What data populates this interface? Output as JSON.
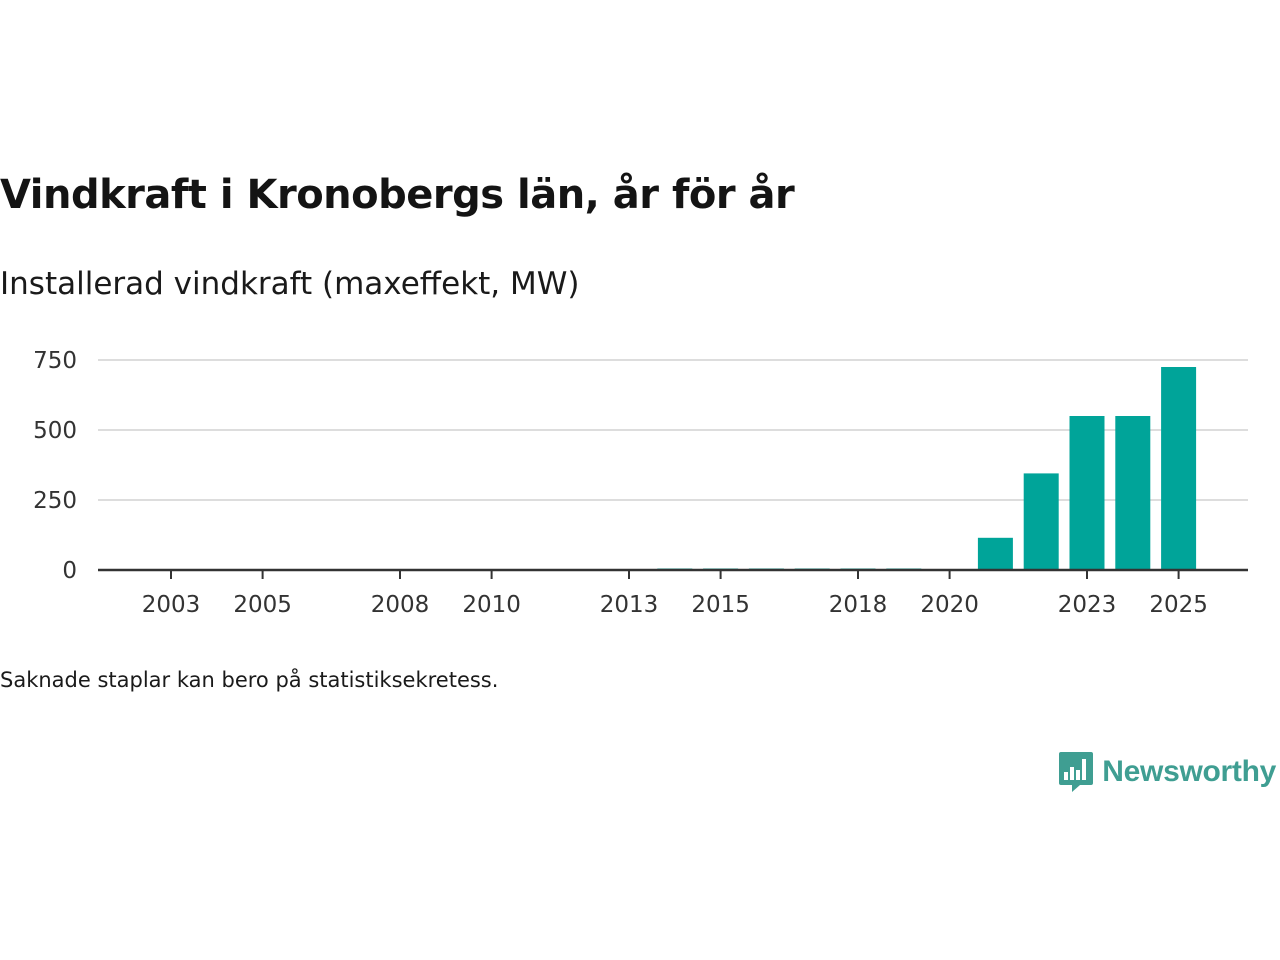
{
  "header": {
    "title": "Vindkraft i Kronobergs län, år för år",
    "subtitle": "Installerad vindkraft (maxeffekt, MW)"
  },
  "footer": {
    "note": "Saknade staplar kan bero på statistiksekretess.",
    "brand": "Newsworthy"
  },
  "colors": {
    "bar": "#00a499",
    "grid": "#dddddd",
    "axis": "#333333",
    "brand": "#3f9e92"
  },
  "chart_data": {
    "type": "bar",
    "title": "Vindkraft i Kronobergs län, år för år",
    "subtitle": "Installerad vindkraft (maxeffekt, MW)",
    "xlabel": "",
    "ylabel": "",
    "ylim": [
      0,
      800
    ],
    "yticks": [
      0,
      250,
      500,
      750
    ],
    "ytick_labels": [
      "0",
      "250",
      "500",
      "750"
    ],
    "categories": [
      "2003",
      "2004",
      "2005",
      "2006",
      "2007",
      "2008",
      "2009",
      "2010",
      "2011",
      "2012",
      "2013",
      "2014",
      "2015",
      "2016",
      "2017",
      "2018",
      "2019",
      "2020",
      "2021",
      "2022",
      "2023",
      "2024",
      "2025"
    ],
    "xtick_labels": [
      "2003",
      "2005",
      "2008",
      "2010",
      "2013",
      "2015",
      "2018",
      "2020",
      "2023",
      "2025"
    ],
    "values": [
      0,
      0,
      0,
      0,
      0,
      0,
      0,
      0,
      0,
      0,
      0,
      2,
      2,
      2,
      2,
      2,
      2,
      0,
      115,
      345,
      550,
      550,
      725
    ],
    "grid": true,
    "legend": "none"
  }
}
